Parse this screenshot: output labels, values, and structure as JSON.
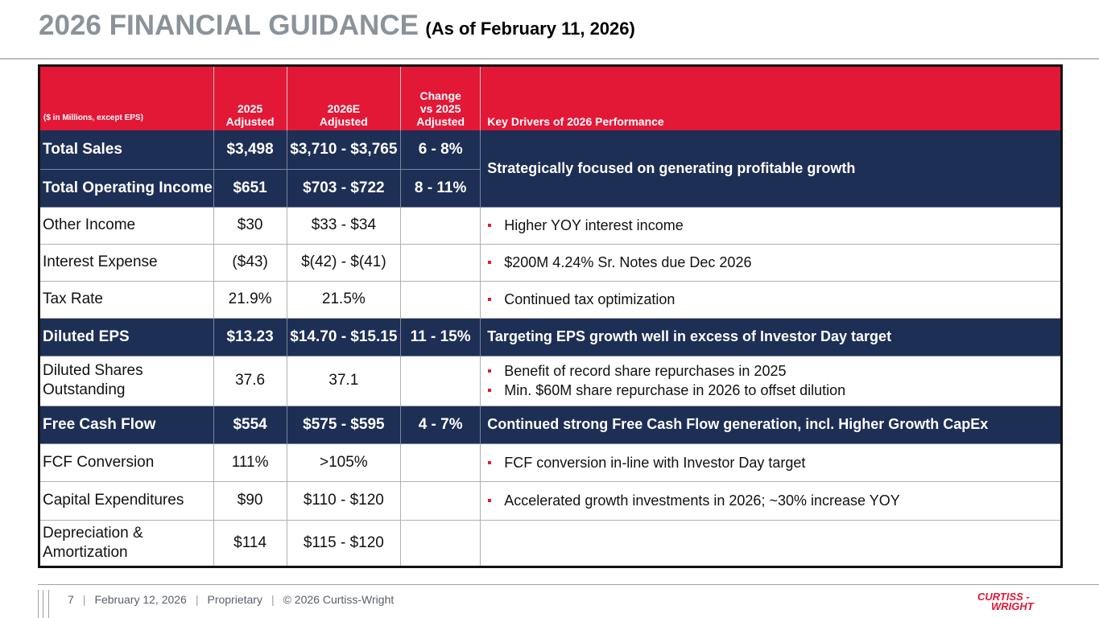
{
  "title": {
    "main": "2026 FINANCIAL GUIDANCE",
    "sub": "(As of February 11, 2026)"
  },
  "table": {
    "headers": [
      "($ in Millions, except EPS)",
      "2025 Adjusted",
      "2026E Adjusted",
      "Change vs 2025 Adjusted",
      "Key Drivers of 2026 Performance"
    ],
    "header_lines": {
      "c1": [
        "2025",
        "Adjusted"
      ],
      "c2": [
        "2026E",
        "Adjusted"
      ],
      "c3": [
        "Change",
        "vs 2025",
        "Adjusted"
      ]
    },
    "rows": {
      "total_sales": {
        "label": "Total Sales",
        "y2025": "$3,498",
        "y2026": "$3,710 - $3,765",
        "change": "6 - 8%"
      },
      "total_operating_income": {
        "label": "Total Operating Income",
        "y2025": "$651",
        "y2026": "$703 - $722",
        "change": "8 - 11%"
      },
      "sales_oi_driver": "Strategically focused on generating profitable growth",
      "other_income": {
        "label": "Other Income",
        "y2025": "$30",
        "y2026": "$33 - $34",
        "change": "",
        "drivers": [
          "Higher YOY interest income"
        ]
      },
      "interest_expense": {
        "label": "Interest Expense",
        "y2025": "($43)",
        "y2026": "$(42) - $(41)",
        "change": "",
        "drivers": [
          "$200M 4.24% Sr. Notes due Dec 2026"
        ]
      },
      "tax_rate": {
        "label": "Tax Rate",
        "y2025": "21.9%",
        "y2026": "21.5%",
        "change": "",
        "drivers": [
          "Continued tax optimization"
        ]
      },
      "diluted_eps": {
        "label": "Diluted EPS",
        "y2025": "$13.23",
        "y2026": "$14.70 - $15.15",
        "change": "11 - 15%",
        "driver": "Targeting EPS growth well in excess of Investor Day target"
      },
      "diluted_shares": {
        "label_lines": [
          "Diluted Shares",
          "Outstanding"
        ],
        "y2025": "37.6",
        "y2026": "37.1",
        "change": "",
        "drivers": [
          "Benefit of record share repurchases in 2025",
          "Min. $60M share repurchase in 2026 to offset dilution"
        ]
      },
      "free_cash_flow": {
        "label": "Free Cash Flow",
        "y2025": "$554",
        "y2026": "$575 - $595",
        "change": "4 - 7%",
        "driver": "Continued strong Free Cash Flow generation, incl. Higher Growth CapEx"
      },
      "fcf_conversion": {
        "label": "FCF Conversion",
        "y2025": "111%",
        "y2026": ">105%",
        "change": "",
        "drivers": [
          "FCF conversion in-line with Investor Day target"
        ]
      },
      "capital_expenditures": {
        "label": "Capital Expenditures",
        "y2025": "$90",
        "y2026": "$110 - $120",
        "change": "",
        "drivers": [
          "Accelerated growth investments in 2026; ~30% increase YOY"
        ]
      },
      "depreciation": {
        "label_lines": [
          "Depreciation &",
          "Amortization"
        ],
        "y2025": "$114",
        "y2026": "$115 - $120",
        "change": ""
      }
    }
  },
  "footer": {
    "page": "7",
    "date": "February 12, 2026",
    "classification": "Proprietary",
    "copyright": "© 2026 Curtiss-Wright",
    "sep": "|"
  },
  "logo": {
    "line1": "CURTISS -",
    "line2": "WRIGHT"
  },
  "colors": {
    "accent_red": "#e31837",
    "navy": "#1d2f55",
    "title_gray": "#8a929a"
  }
}
